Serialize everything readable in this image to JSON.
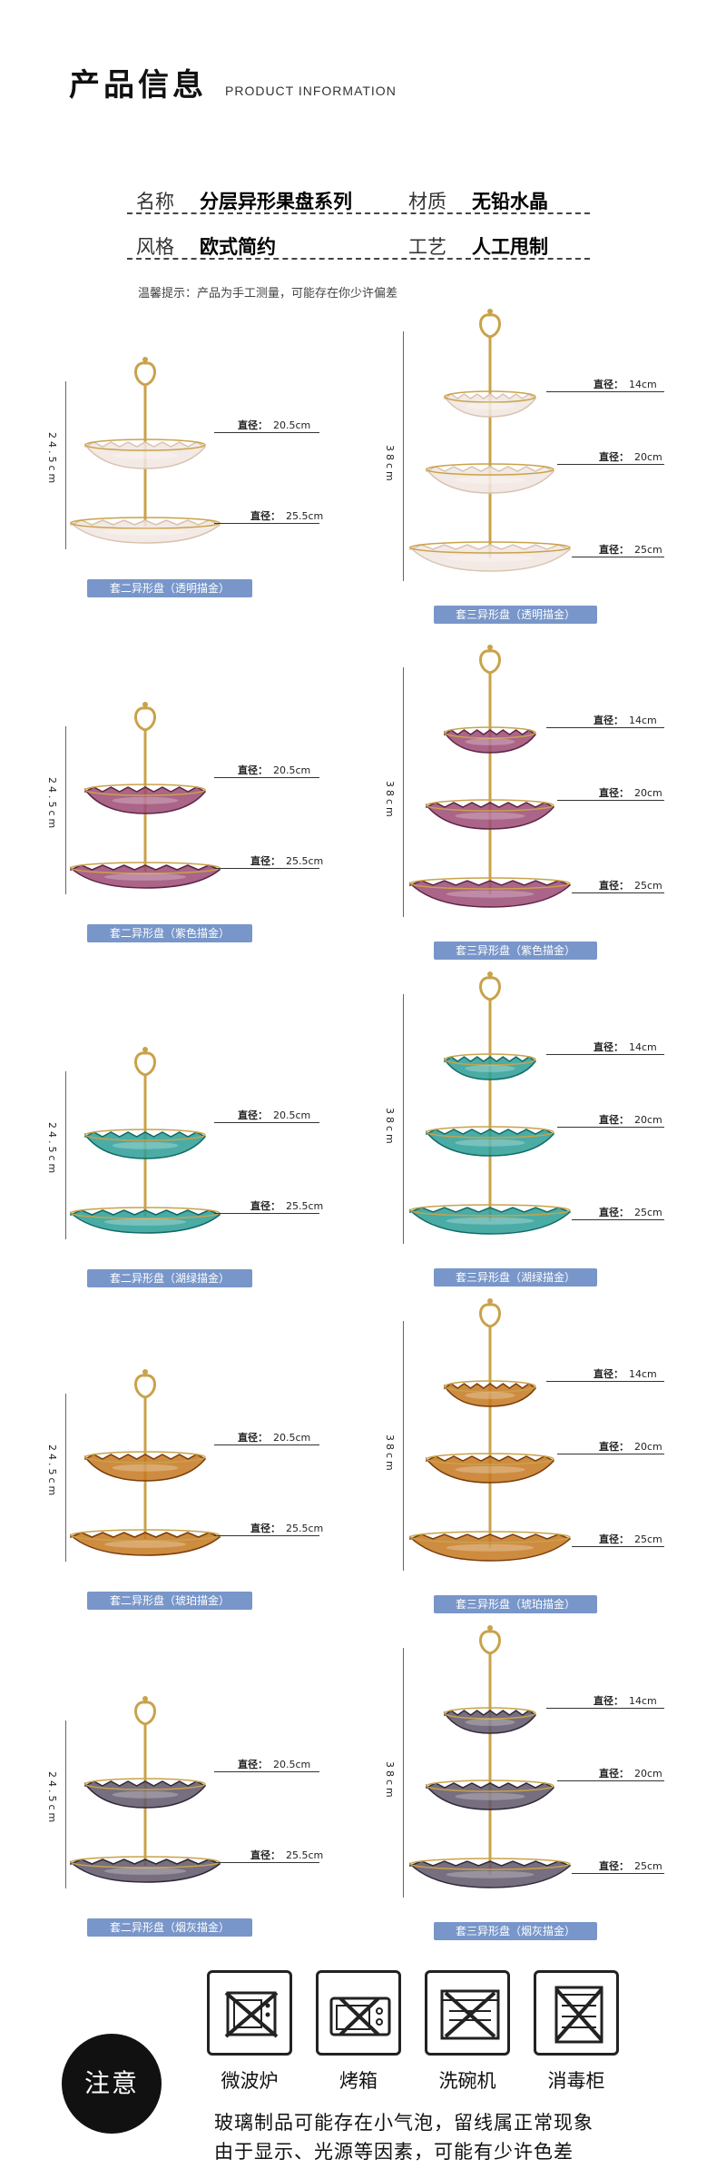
{
  "header": {
    "title_zh": "产品信息",
    "title_en": "PRODUCT INFORMATION"
  },
  "specs": {
    "name_label": "名称",
    "name_value": "分层异形果盘系列",
    "material_label": "材质",
    "material_value": "无铅水晶",
    "style_label": "风格",
    "style_value": "欧式简约",
    "craft_label": "工艺",
    "craft_value": "人工甩制"
  },
  "note": "温馨提示：产品为手工测量，可能存在你少许偏差",
  "dim_key": "直径：",
  "two_tier": {
    "height": "24.5cm",
    "top": "20.5cm",
    "bottom": "25.5cm"
  },
  "three_tier": {
    "height": "38cm",
    "top": "14cm",
    "mid": "20cm",
    "bottom": "25cm"
  },
  "products": [
    {
      "caption_2": "套二异形盘（透明描金）",
      "caption_3": "套三异形盘（透明描金）",
      "color": "#f1e6e2",
      "edge": "#d9c3b0"
    },
    {
      "caption_2": "套二异形盘（紫色描金）",
      "caption_3": "套三异形盘（紫色描金）",
      "color": "#9b4a73",
      "edge": "#5e2446"
    },
    {
      "caption_2": "套二异形盘（湖绿描金）",
      "caption_3": "套三异形盘（湖绿描金）",
      "color": "#2c9d96",
      "edge": "#0f6b66"
    },
    {
      "caption_2": "套二异形盘（琥珀描金）",
      "caption_3": "套三异形盘（琥珀描金）",
      "color": "#c6781f",
      "edge": "#7a3c0b"
    },
    {
      "caption_2": "套二异形盘（烟灰描金）",
      "caption_3": "套三异形盘（烟灰描金）",
      "color": "#5f5668",
      "edge": "#2f2a38"
    }
  ],
  "colors": {
    "gold": "#c9a24a",
    "caption_bg": "#7896c9"
  },
  "notice": {
    "badge": "注意",
    "icons": [
      {
        "label": "微波炉",
        "icon": "microwave-icon"
      },
      {
        "label": "烤箱",
        "icon": "oven-icon"
      },
      {
        "label": "洗碗机",
        "icon": "dishwasher-icon"
      },
      {
        "label": "消毒柜",
        "icon": "sterilizer-icon"
      }
    ],
    "line1": "玻璃制品可能存在小气泡，留线属正常现象",
    "line2": "由于显示、光源等因素，可能有少许色差"
  }
}
